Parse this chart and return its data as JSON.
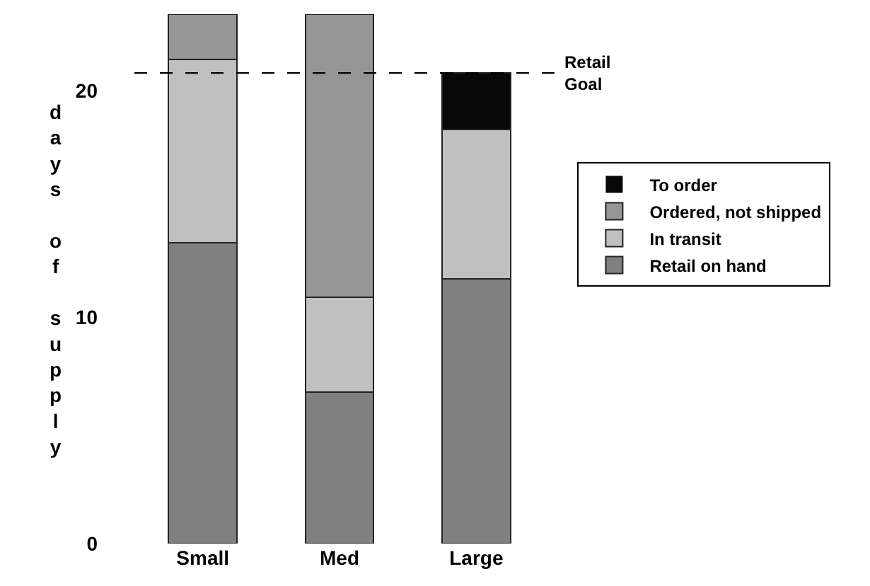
{
  "chart_data": {
    "type": "bar",
    "stacked": true,
    "ylabel": "days of supply",
    "categories": [
      "Small",
      "Med",
      "Large"
    ],
    "series": [
      {
        "name": "Retail on hand",
        "color": "#808080",
        "values": [
          13.3,
          6.7,
          11.7
        ]
      },
      {
        "name": "In transit",
        "color": "#c0c0c0",
        "values": [
          8.1,
          4.2,
          6.6
        ]
      },
      {
        "name": "Ordered, not shipped",
        "color": "#969696",
        "values": [
          2.0,
          12.5,
          0
        ]
      },
      {
        "name": "To order",
        "color": "#080808",
        "values": [
          0,
          0,
          2.5
        ]
      }
    ],
    "ylim": [
      0,
      23.4
    ],
    "yticks": [
      0,
      10,
      20
    ],
    "grid": false,
    "legend": "right",
    "ref_lines": [
      {
        "axis": "y",
        "value": 20.8,
        "label": "Retail Goal",
        "line_style": "dashed",
        "color": "#000000"
      }
    ]
  }
}
